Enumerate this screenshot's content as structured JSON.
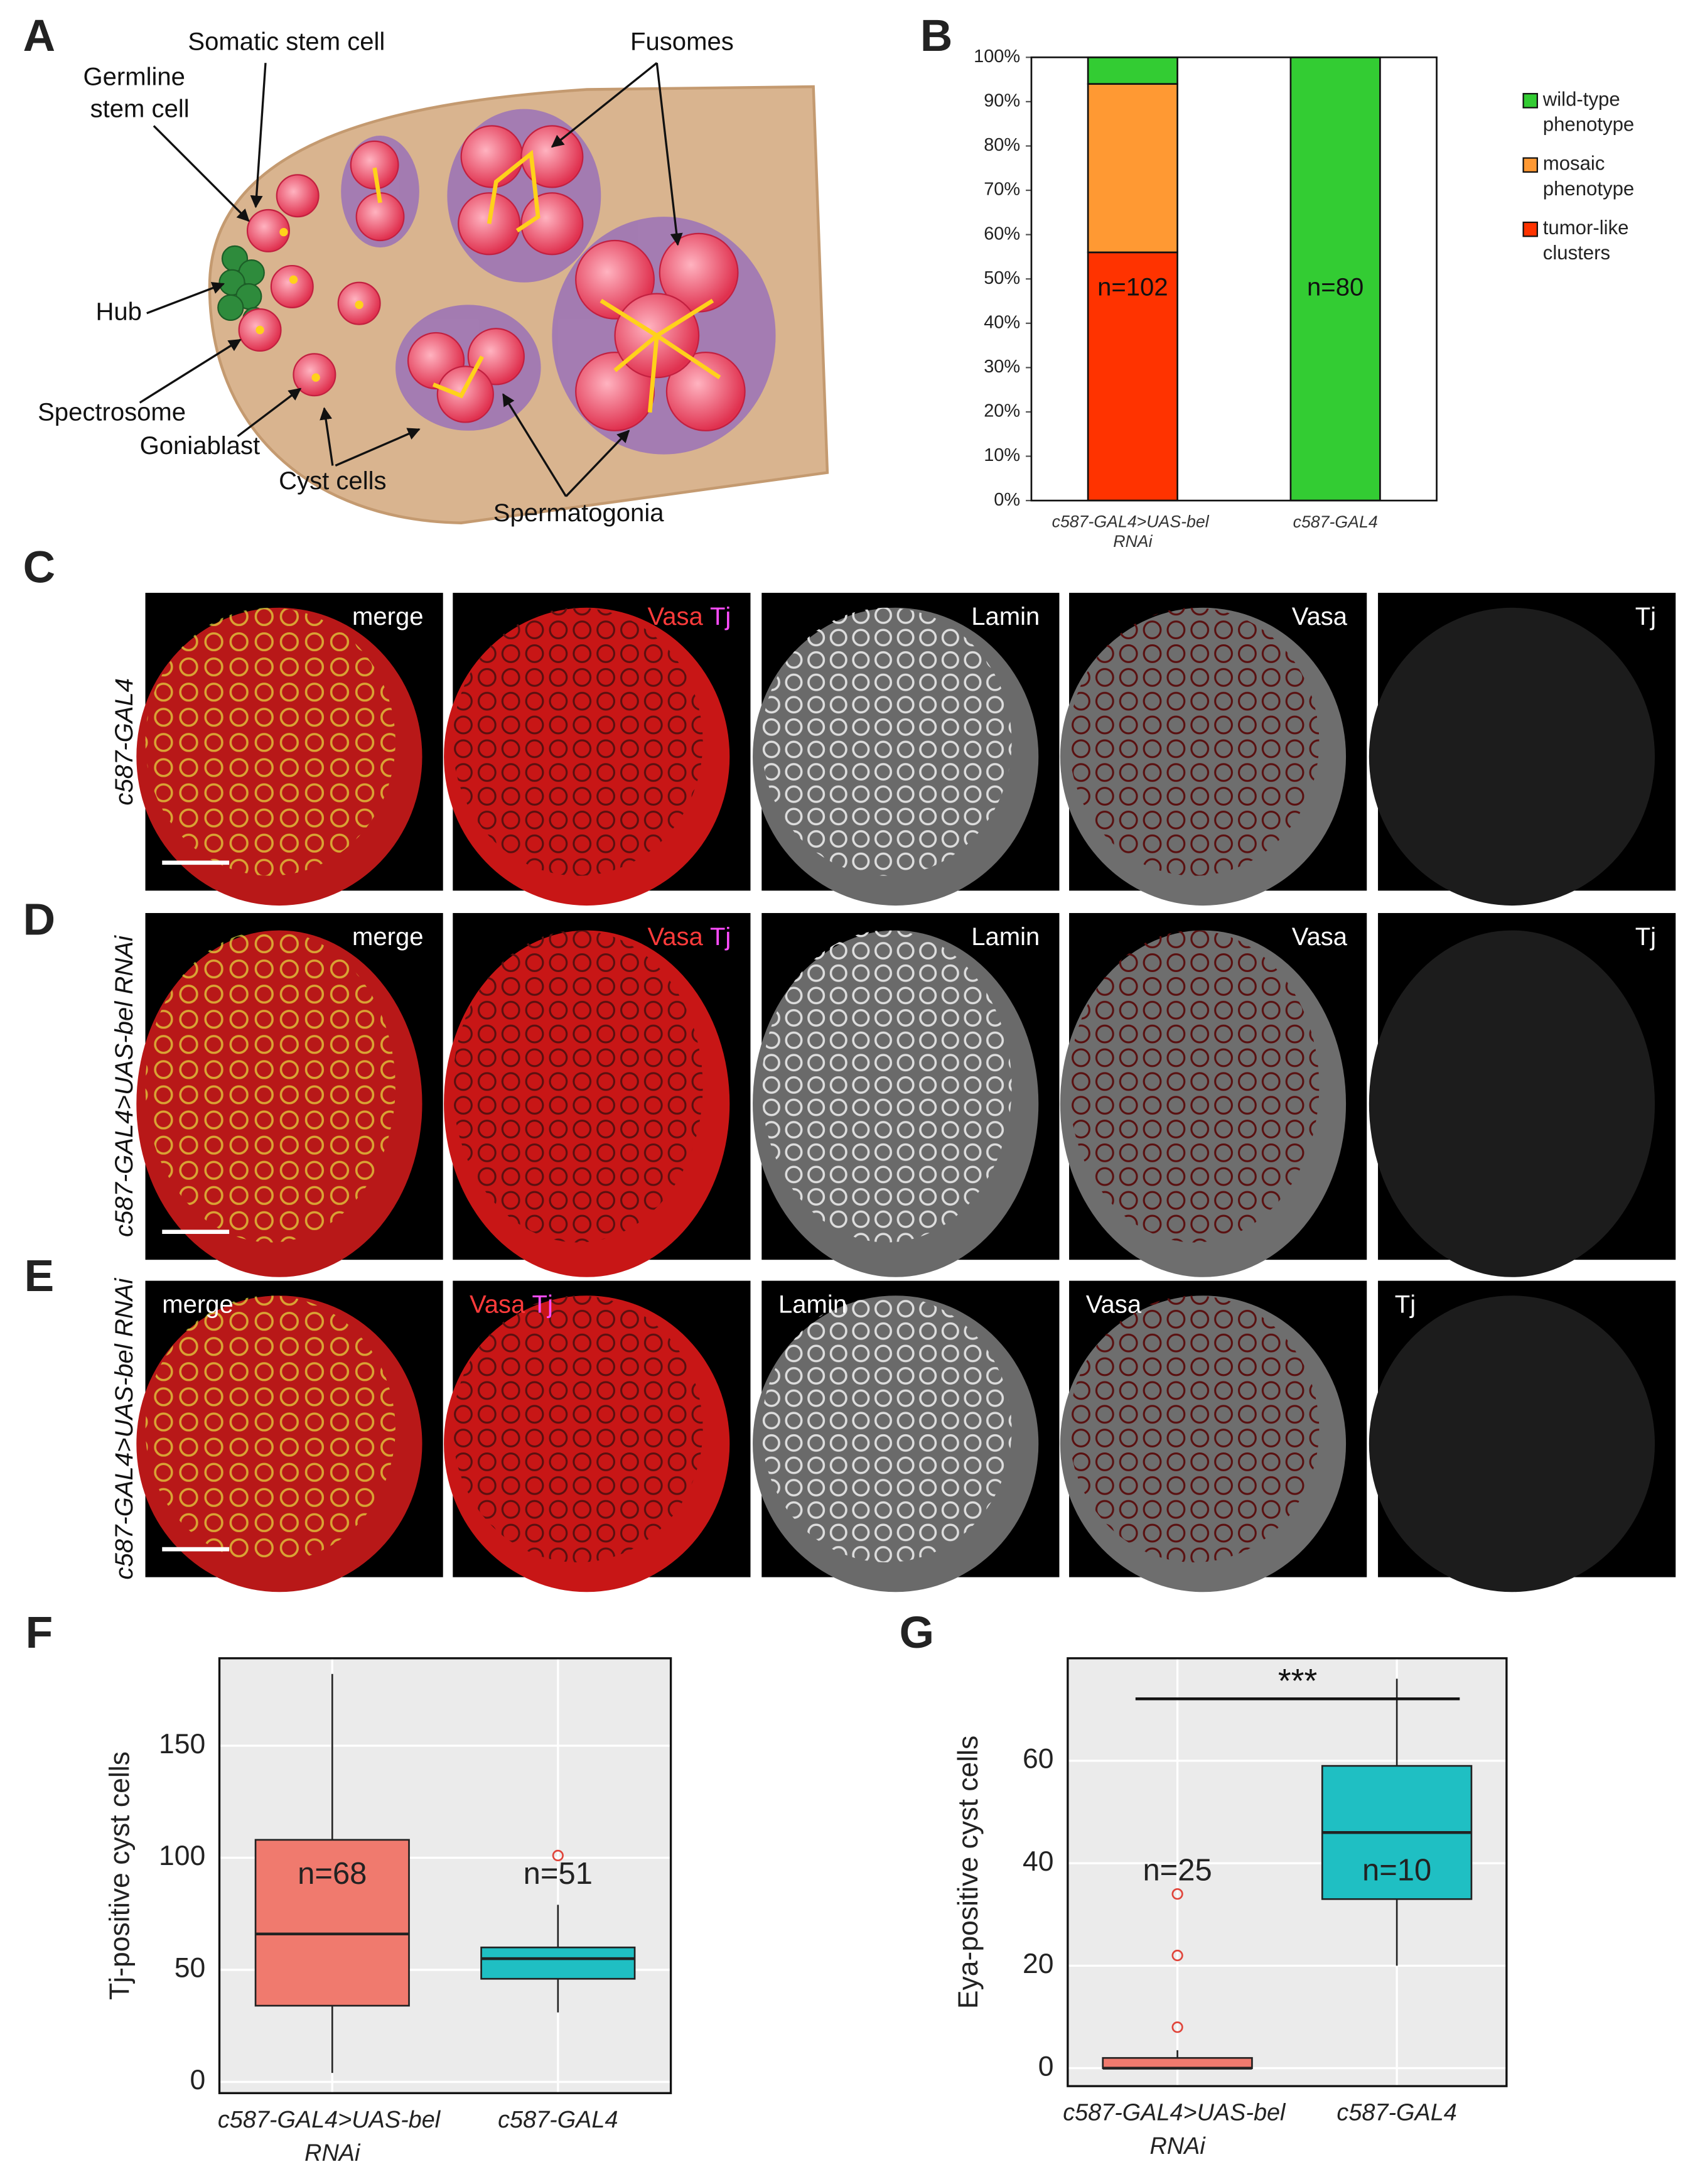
{
  "panel_labels": [
    "A",
    "B",
    "C",
    "D",
    "E",
    "F",
    "G"
  ],
  "diagram": {
    "labels": [
      "Somatic  stem cell",
      "Germline",
      "stem cell",
      "Fusomes",
      "Hub",
      "Spectrosome",
      "Goniablast",
      "Cyst cells",
      "Spermatogonia"
    ]
  },
  "chart_data": [
    {
      "type": "bar",
      "stacked": true,
      "categories": [
        "c587-GAL4>UAS-bel RNAi",
        "c587-GAL4"
      ],
      "series": [
        {
          "name": "tumor-like clusters",
          "color": "#ff3300",
          "values": [
            56,
            0
          ]
        },
        {
          "name": "mosaic phenotype",
          "color": "#ff9933",
          "values": [
            38,
            0
          ]
        },
        {
          "name": "wild-type phenotype",
          "color": "#33cc33",
          "values": [
            6,
            100
          ]
        }
      ],
      "ylim": [
        0,
        100
      ],
      "yticks": [
        {
          "value": 0,
          "label": "0%"
        },
        {
          "value": 10,
          "label": "10%"
        },
        {
          "value": 20,
          "label": "20%"
        },
        {
          "value": 30,
          "label": "30%"
        },
        {
          "value": 40,
          "label": "40%"
        },
        {
          "value": 50,
          "label": "50%"
        },
        {
          "value": 60,
          "label": "60%"
        },
        {
          "value": 70,
          "label": "70%"
        },
        {
          "value": 80,
          "label": "80%"
        },
        {
          "value": 90,
          "label": "90%"
        },
        {
          "value": 100,
          "label": "100%"
        }
      ],
      "annotations": [
        "n=102",
        "n=80"
      ],
      "legend": "right"
    },
    {
      "type": "box",
      "y_label": "Tj-positive cyst cells",
      "categories": [
        "c587-GAL4>UAS-bel RNAi",
        "c587-GAL4"
      ],
      "colors": [
        "#f07a6e",
        "#1fbfc3"
      ],
      "boxes": [
        {
          "min": 4,
          "q1": 34,
          "median": 66,
          "q3": 108,
          "max": 182,
          "outliers": []
        },
        {
          "min": 31,
          "q1": 46,
          "median": 55,
          "q3": 60,
          "max": 79,
          "outliers": [
            101
          ]
        }
      ],
      "ylim": [
        -5,
        189
      ],
      "yticks": [
        0,
        50,
        100,
        150
      ],
      "annotations": [
        "n=68",
        "n=51"
      ],
      "grid": true
    },
    {
      "type": "box",
      "y_label": "Eya-positive cyst cells",
      "categories": [
        "c587-GAL4>UAS-bel RNAi",
        "c587-GAL4"
      ],
      "colors": [
        "#f07a6e",
        "#1fbfc3"
      ],
      "boxes": [
        {
          "min": 0,
          "q1": 0,
          "median": 0,
          "q3": 2,
          "max": 3.5,
          "outliers": [
            8,
            22,
            34
          ]
        },
        {
          "min": 20,
          "q1": 33,
          "median": 46,
          "q3": 59,
          "max": 76,
          "outliers": []
        }
      ],
      "ylim": [
        -3.5,
        80
      ],
      "yticks": [
        0,
        20,
        40,
        60
      ],
      "annotations": [
        "n=25",
        "n=10"
      ],
      "significance": "***",
      "grid": true
    }
  ],
  "micrographs": {
    "rows": [
      {
        "genotype": "c587-GAL4",
        "images": [
          [
            "merge"
          ],
          [
            "Vasa",
            "Tj"
          ],
          [
            "Lamin"
          ],
          [
            "Vasa"
          ],
          [
            "Tj"
          ]
        ]
      },
      {
        "genotype": "c587-GAL4>UAS-bel RNAi",
        "images": [
          [
            "merge"
          ],
          [
            "Vasa",
            "Tj"
          ],
          [
            "Lamin"
          ],
          [
            "Vasa"
          ],
          [
            "Tj"
          ]
        ]
      },
      {
        "genotype": "c587-GAL4>UAS-bel RNAi",
        "images": [
          [
            "merge"
          ],
          [
            "Vasa",
            "Tj"
          ],
          [
            "Lamin"
          ],
          [
            "Vasa"
          ],
          [
            "Tj"
          ]
        ]
      }
    ]
  }
}
